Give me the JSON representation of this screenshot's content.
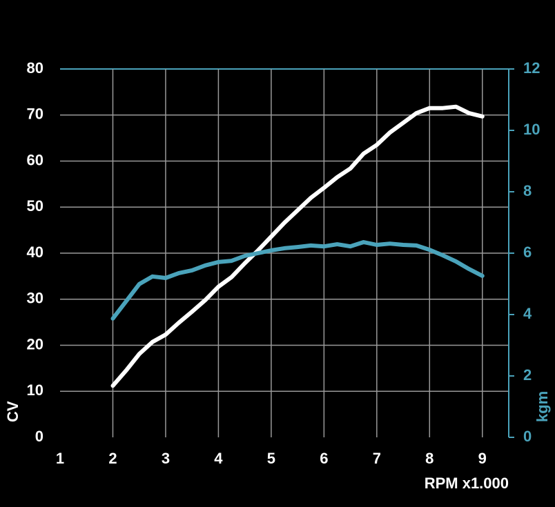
{
  "chart_data": {
    "type": "line",
    "xlabel": "RPM x1.000",
    "ylabel": "CV",
    "y2label": "kgm",
    "x": [
      2,
      2.25,
      2.5,
      2.75,
      3,
      3.25,
      3.5,
      3.75,
      4,
      4.25,
      4.5,
      4.75,
      5,
      5.25,
      5.5,
      5.75,
      6,
      6.25,
      6.5,
      6.75,
      7,
      7.25,
      7.5,
      7.75,
      8,
      8.25,
      8.5,
      8.75,
      9
    ],
    "series": [
      {
        "color": "#ffffff",
        "values": [
          11.2,
          14.5,
          18.1,
          20.7,
          22.3,
          24.9,
          27.3,
          29.8,
          32.7,
          34.8,
          37.8,
          40.6,
          43.6,
          46.6,
          49.3,
          52,
          54.2,
          56.5,
          58.4,
          61.6,
          63.5,
          66.2,
          68.3,
          70.4,
          71.5,
          71.5,
          71.8,
          70.4,
          69.7
        ]
      },
      {
        "color": "#4aa3bb",
        "axis": "y2",
        "values": [
          3.87,
          4.43,
          4.99,
          5.24,
          5.19,
          5.35,
          5.44,
          5.6,
          5.71,
          5.75,
          5.91,
          6.0,
          6.09,
          6.16,
          6.2,
          6.25,
          6.22,
          6.29,
          6.22,
          6.36,
          6.27,
          6.31,
          6.27,
          6.25,
          6.11,
          5.93,
          5.73,
          5.48,
          5.26
        ]
      }
    ],
    "xlim": [
      1,
      9.5
    ],
    "xticks": [
      1,
      2,
      3,
      4,
      5,
      6,
      7,
      8,
      9
    ],
    "ylim": [
      0,
      80
    ],
    "yticks": [
      0,
      10,
      20,
      30,
      40,
      50,
      60,
      70,
      80
    ],
    "y2lim": [
      0,
      12
    ],
    "y2ticks": [
      0,
      2,
      4,
      6,
      8,
      10,
      12
    ],
    "grid": true,
    "y2color": "#4aa3bb"
  }
}
